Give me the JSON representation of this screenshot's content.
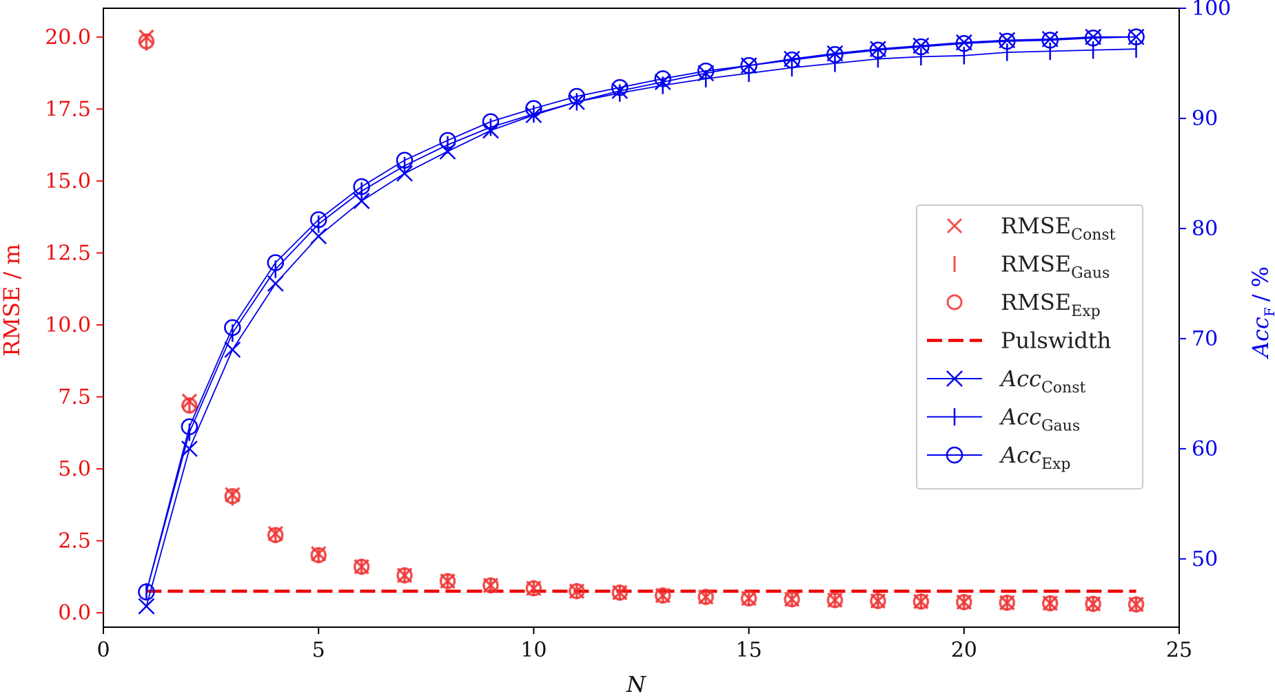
{
  "chart_data": {
    "type": "line",
    "xlabel": "N",
    "ylabel_left": "RMSE / m",
    "ylabel_right": {
      "main": "Acc",
      "sub": "F",
      "unit": "/ %"
    },
    "xlim": [
      0,
      25
    ],
    "ylim_left": [
      -0.5,
      21.0
    ],
    "ylim_right": [
      43.8,
      100
    ],
    "xticks": [
      0,
      5,
      10,
      15,
      20,
      25
    ],
    "yticks_left": [
      0.0,
      2.5,
      5.0,
      7.5,
      10.0,
      12.5,
      15.0,
      17.5,
      20.0
    ],
    "yticks_right": [
      50,
      60,
      70,
      80,
      90,
      100
    ],
    "grid": false,
    "legend_position": "center-right",
    "colors": {
      "left_axis": "#ee1111",
      "right_axis": "#0000ee",
      "rmse": "#ee3333",
      "acc": "#0000ee"
    },
    "x": [
      1,
      2,
      3,
      4,
      5,
      6,
      7,
      8,
      9,
      10,
      11,
      12,
      13,
      14,
      15,
      16,
      17,
      18,
      19,
      20,
      21,
      22,
      23,
      24
    ],
    "rmse_series": [
      {
        "name_main": "RMSE",
        "name_sub": "Const",
        "marker": "x",
        "axis": "left",
        "values": [
          20.0,
          7.35,
          4.1,
          2.75,
          2.05,
          1.6,
          1.3,
          1.1,
          0.95,
          0.85,
          0.75,
          0.7,
          0.6,
          0.55,
          0.5,
          0.47,
          0.44,
          0.41,
          0.39,
          0.37,
          0.35,
          0.33,
          0.31,
          0.29
        ]
      },
      {
        "name_main": "RMSE",
        "name_sub": "Gaus",
        "marker": "|",
        "axis": "left",
        "values": [
          19.8,
          7.2,
          4.0,
          2.7,
          2.0,
          1.6,
          1.3,
          1.1,
          0.95,
          0.85,
          0.75,
          0.7,
          0.6,
          0.55,
          0.5,
          0.47,
          0.44,
          0.41,
          0.39,
          0.37,
          0.35,
          0.33,
          0.31,
          0.29
        ]
      },
      {
        "name_main": "RMSE",
        "name_sub": "Exp",
        "marker": "o",
        "axis": "left",
        "values": [
          19.85,
          7.2,
          4.05,
          2.7,
          2.0,
          1.6,
          1.3,
          1.1,
          0.95,
          0.85,
          0.75,
          0.7,
          0.6,
          0.55,
          0.5,
          0.47,
          0.44,
          0.41,
          0.39,
          0.37,
          0.35,
          0.33,
          0.31,
          0.29
        ]
      }
    ],
    "pulswidth": {
      "name": "Pulswidth",
      "x": [
        1,
        24
      ],
      "value": 0.75,
      "style": "dashed",
      "axis": "left"
    },
    "acc_series": [
      {
        "name_main": "Acc",
        "name_sub": "Const",
        "marker": "x",
        "axis": "right",
        "values": [
          45.7,
          60.0,
          69.0,
          75.0,
          79.3,
          82.5,
          85.0,
          87.0,
          88.9,
          90.3,
          91.5,
          92.5,
          93.3,
          94.1,
          94.8,
          95.4,
          95.9,
          96.3,
          96.6,
          96.9,
          97.1,
          97.2,
          97.4,
          97.4
        ]
      },
      {
        "name_main": "Acc",
        "name_sub": "Gaus",
        "marker": "|",
        "axis": "right",
        "values": [
          47.0,
          61.5,
          70.5,
          76.3,
          80.4,
          83.4,
          85.7,
          87.6,
          89.2,
          90.4,
          91.5,
          92.3,
          93.0,
          93.6,
          94.1,
          94.6,
          95.0,
          95.4,
          95.6,
          95.7,
          96.0,
          96.1,
          96.2,
          96.3
        ]
      },
      {
        "name_main": "Acc",
        "name_sub": "Exp",
        "marker": "o",
        "axis": "right",
        "values": [
          47.0,
          62.0,
          71.0,
          76.9,
          80.8,
          83.8,
          86.2,
          88.0,
          89.7,
          90.9,
          92.0,
          92.8,
          93.6,
          94.3,
          94.8,
          95.3,
          95.8,
          96.2,
          96.5,
          96.8,
          97.0,
          97.1,
          97.3,
          97.4
        ]
      }
    ]
  }
}
